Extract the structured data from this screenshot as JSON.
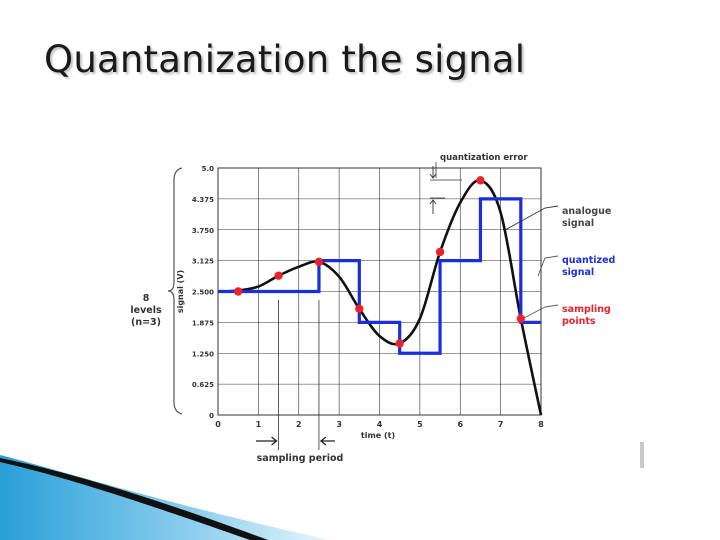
{
  "slide": {
    "title": "Quantanization the signal"
  },
  "colors": {
    "curve": "#111111",
    "quantized": "#1a2ee0",
    "points": "#e8232a",
    "grid": "#333333"
  },
  "chart_data": {
    "type": "line",
    "xlabel": "time (t)",
    "ylabel": "signal (V)",
    "xlim": [
      0,
      8
    ],
    "ylim": [
      0,
      5.0
    ],
    "x_ticks": [
      "0",
      "1",
      "2",
      "3",
      "4",
      "5",
      "6",
      "7",
      "8"
    ],
    "y_ticks": [
      "0",
      "0.625",
      "1.250",
      "1.875",
      "2.500",
      "3.125",
      "3.750",
      "4.375",
      "5.0"
    ],
    "series": [
      {
        "name": "analogue signal",
        "kind": "curve",
        "x": [
          0,
          0.5,
          1,
          1.5,
          2,
          2.5,
          3,
          3.5,
          4,
          4.5,
          5,
          5.5,
          6,
          6.5,
          7,
          7.5,
          8
        ],
        "y": [
          2.5,
          2.52,
          2.6,
          2.82,
          3.0,
          3.1,
          2.8,
          2.15,
          1.6,
          1.45,
          1.95,
          3.3,
          4.3,
          4.75,
          4.1,
          1.95,
          0
        ]
      },
      {
        "name": "quantized signal",
        "kind": "step",
        "x": [
          0,
          2.5,
          3.5,
          4.5,
          5.5,
          6.5,
          7.5,
          8
        ],
        "y": [
          2.5,
          3.125,
          1.875,
          1.25,
          3.125,
          4.375,
          1.875,
          1.875
        ]
      },
      {
        "name": "sampling points",
        "kind": "points",
        "x": [
          0.5,
          1.5,
          2.5,
          3.5,
          4.5,
          5.5,
          6.5,
          7.5
        ],
        "y": [
          2.5,
          2.82,
          3.1,
          2.15,
          1.45,
          3.3,
          4.75,
          1.95
        ]
      }
    ],
    "annotations": {
      "quantization_error": "quantization error",
      "analogue": [
        "analogue",
        "signal"
      ],
      "quantized": [
        "quantized",
        "signal"
      ],
      "sampling": [
        "sampling",
        "points"
      ],
      "levels": [
        "8",
        "levels",
        "(n=3)"
      ],
      "sampling_period": "sampling period"
    }
  }
}
